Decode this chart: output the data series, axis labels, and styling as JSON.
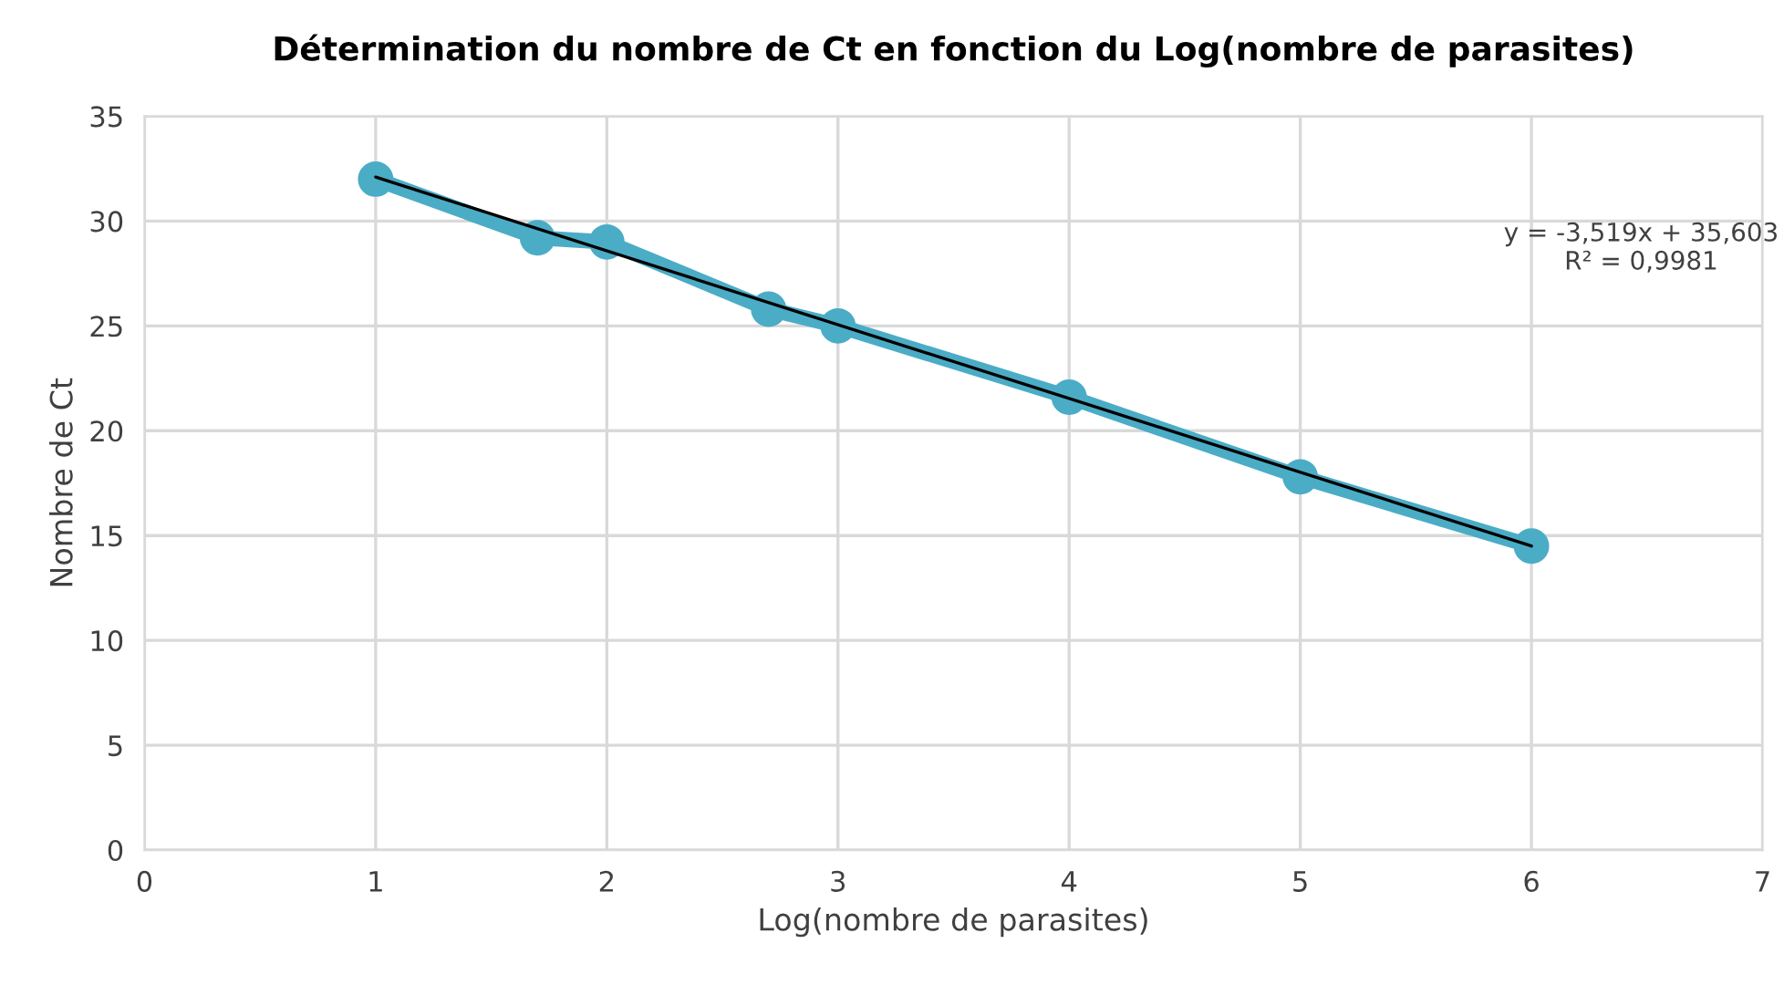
{
  "chart_data": {
    "type": "line",
    "title": "Détermination du nombre de Ct en fonction du Log(nombre de parasites)",
    "xlabel": "Log(nombre de parasites)",
    "ylabel": "Nombre de Ct",
    "series": [
      {
        "color": "#4bacc6",
        "x": [
          1,
          1.7,
          2,
          2.7,
          3,
          4,
          5,
          6
        ],
        "values": [
          32,
          29.2,
          29,
          25.8,
          25,
          21.6,
          17.8,
          14.5
        ],
        "marker": "circle"
      },
      {
        "type": "line",
        "color": "#000000",
        "x": [
          1,
          6
        ],
        "values": [
          32.1,
          14.5
        ]
      }
    ],
    "annotations": [
      "y = -3,519x + 35,603\nR² = 0,9981"
    ],
    "xlim": [
      0,
      7
    ],
    "xticks": [
      0,
      1,
      2,
      3,
      4,
      5,
      6,
      7
    ],
    "ylim": [
      0,
      35
    ],
    "yticks": [
      0,
      5,
      10,
      15,
      20,
      25,
      30,
      35
    ],
    "grid": true
  }
}
